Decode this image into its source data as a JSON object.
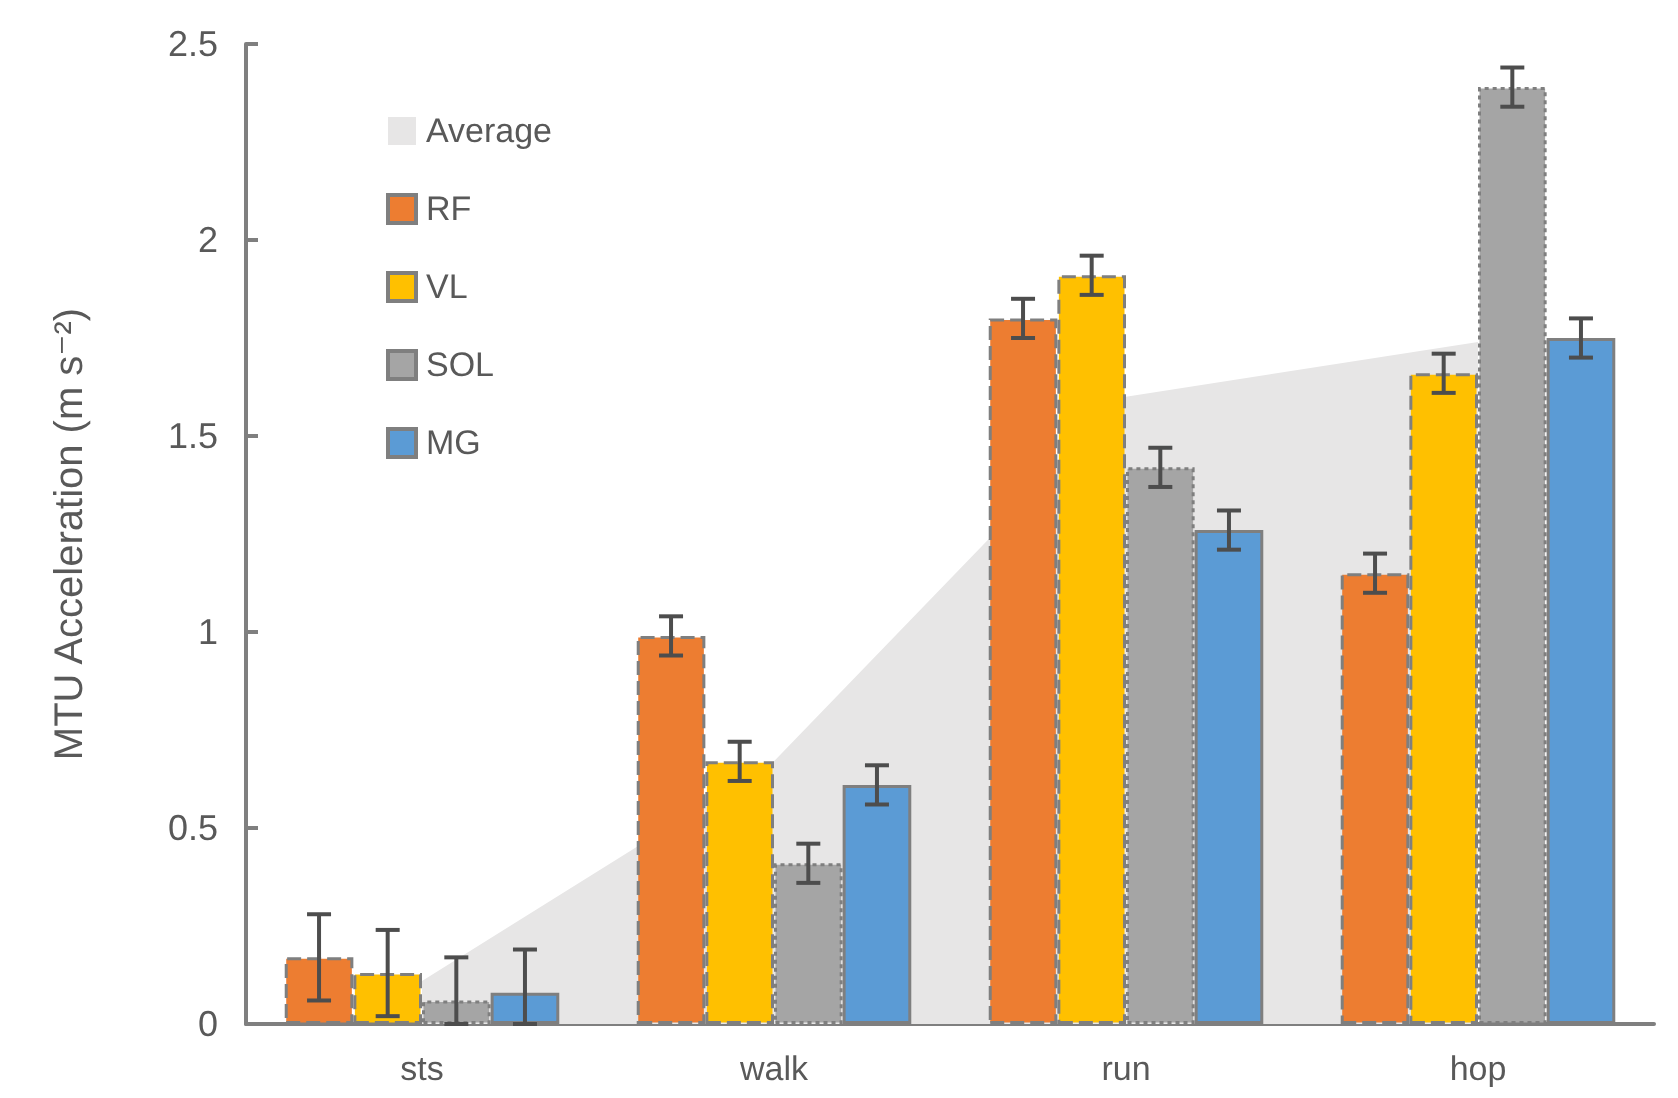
{
  "chart_data": {
    "type": "bar",
    "ylabel": "MTU Acceleration (m s⁻²)",
    "categories": [
      "sts",
      "walk",
      "run",
      "hop"
    ],
    "series": [
      {
        "name": "Average",
        "type": "area",
        "color": "#e7e6e6",
        "values": [
          0.11,
          0.67,
          1.6,
          1.74
        ]
      },
      {
        "name": "RF",
        "color": "#ed7d31",
        "line_style": "dashed",
        "values": [
          0.17,
          0.99,
          1.8,
          1.15
        ],
        "errors": [
          0.11,
          0.05,
          0.05,
          0.05
        ]
      },
      {
        "name": "VL",
        "color": "#ffc000",
        "line_style": "dashed",
        "values": [
          0.13,
          0.67,
          1.91,
          1.66
        ],
        "errors": [
          0.11,
          0.05,
          0.05,
          0.05
        ]
      },
      {
        "name": "SOL",
        "color": "#a5a5a5",
        "line_style": "dotted",
        "values": [
          0.06,
          0.41,
          1.42,
          2.39
        ],
        "errors": [
          [
            0,
            0.17
          ],
          0.05,
          0.05,
          0.05
        ]
      },
      {
        "name": "MG",
        "color": "#5b9bd5",
        "line_style": "solid",
        "values": [
          0.08,
          0.61,
          1.26,
          1.75
        ],
        "errors": [
          [
            0,
            0.19
          ],
          0.05,
          0.05,
          0.05
        ]
      }
    ],
    "ylim": [
      0,
      2.5
    ],
    "yticks": [
      0,
      0.5,
      1,
      1.5,
      2,
      2.5
    ],
    "legend": "top left"
  }
}
